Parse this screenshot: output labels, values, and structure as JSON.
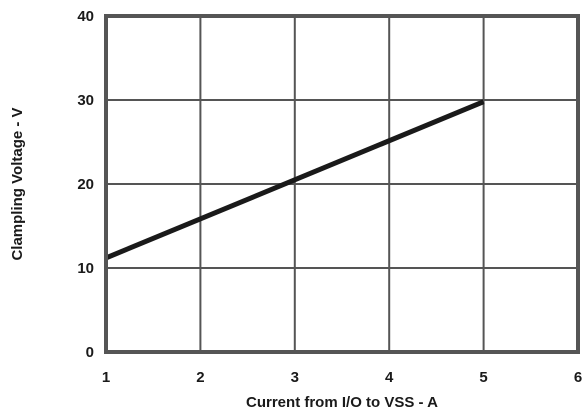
{
  "chart_data": {
    "type": "line",
    "title": "",
    "xlabel": "Current from I/O to VSS - A",
    "ylabel": "Clampling Voltage - V",
    "xlim": [
      1,
      6
    ],
    "ylim": [
      0,
      40
    ],
    "xticks": [
      1,
      2,
      3,
      4,
      5,
      6
    ],
    "yticks": [
      0,
      10,
      20,
      30,
      40
    ],
    "grid": true,
    "legend": "none",
    "series": [
      {
        "x": [
          1,
          5
        ],
        "y": [
          11.2,
          29.8
        ],
        "color": "#1a1a1a"
      }
    ],
    "colors": {
      "frame": "#555555",
      "grid": "#555555",
      "line": "#1a1a1a"
    }
  }
}
